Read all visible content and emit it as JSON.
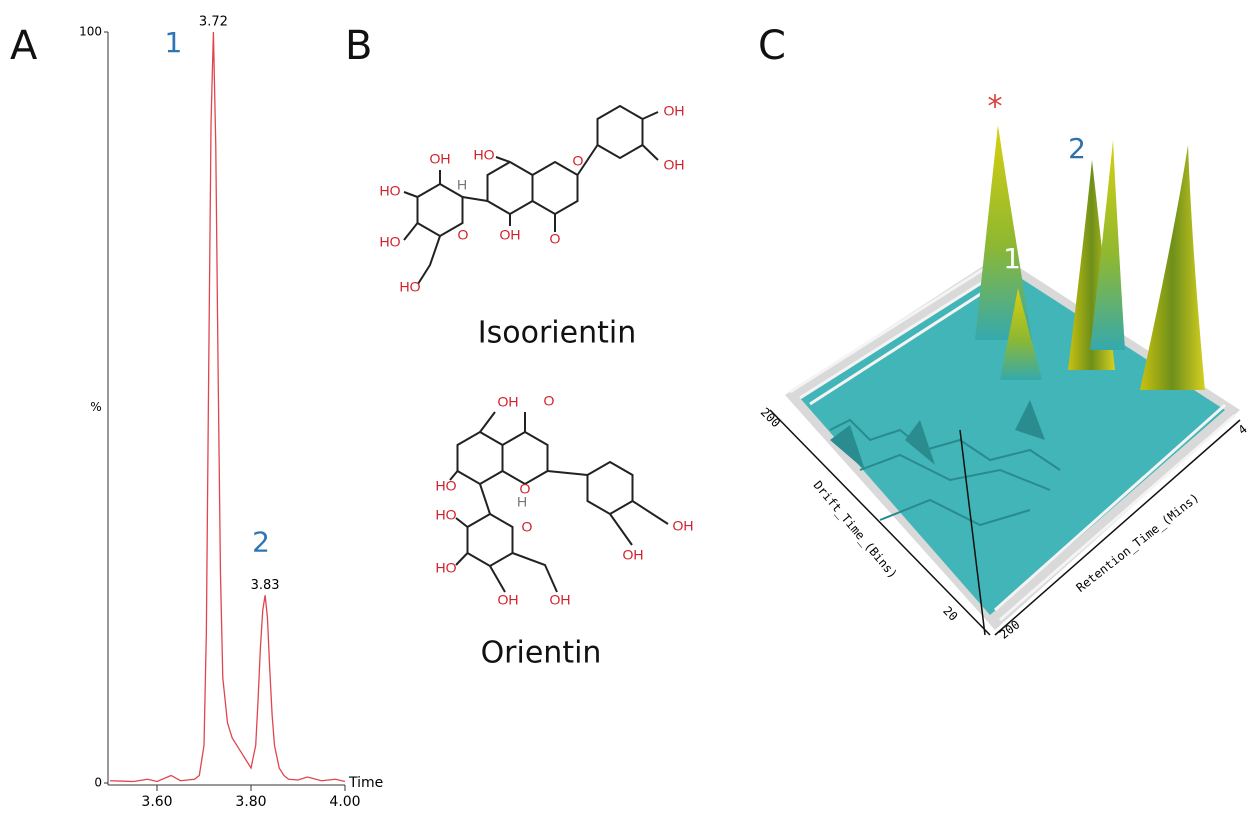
{
  "chart_data": {
    "type": "line",
    "panel_label": "A",
    "xlabel": "Time",
    "ylabel": "%",
    "color": "#e0454f",
    "x": [
      3.5,
      3.55,
      3.58,
      3.6,
      3.63,
      3.65,
      3.68,
      3.69,
      3.7,
      3.705,
      3.71,
      3.715,
      3.72,
      3.725,
      3.73,
      3.735,
      3.74,
      3.75,
      3.76,
      3.77,
      3.78,
      3.79,
      3.8,
      3.81,
      3.815,
      3.82,
      3.825,
      3.83,
      3.835,
      3.84,
      3.845,
      3.85,
      3.86,
      3.87,
      3.88,
      3.9,
      3.92,
      3.95,
      3.98,
      4.0
    ],
    "values": [
      0.3,
      0.2,
      0.5,
      0.2,
      1,
      0.3,
      0.5,
      1,
      5,
      20,
      55,
      88,
      100,
      85,
      55,
      28,
      14,
      8,
      6,
      5,
      4,
      3,
      2,
      5,
      11,
      18,
      23,
      25,
      22,
      15,
      9,
      5,
      2,
      1,
      0.5,
      0.4,
      0.8,
      0.3,
      0.5,
      0.2
    ],
    "xlim": [
      3.5,
      4.0
    ],
    "ylim": [
      0,
      100
    ],
    "xticks": [
      {
        "value": 3.6,
        "label": "3.60"
      },
      {
        "value": 3.8,
        "label": "3.80"
      },
      {
        "value": 4.0,
        "label": "4.00"
      }
    ],
    "yticks": [
      0,
      100
    ],
    "peaks": [
      {
        "number": "1",
        "label": "3.72",
        "x": 3.72,
        "y": 100
      },
      {
        "number": "2",
        "label": "3.83",
        "x": 3.83,
        "y": 25
      }
    ]
  },
  "panel_b": {
    "label": "B",
    "structures": [
      {
        "name": "Isoorientin",
        "atoms": [
          "HO",
          "OH",
          "O",
          "O",
          "OH",
          "OH",
          "H",
          "O",
          "OH",
          "HO",
          "HO",
          "HO"
        ]
      },
      {
        "name": "Orientin",
        "atoms": [
          "OH",
          "O",
          "HO",
          "O",
          "OH",
          "OH",
          "H",
          "O",
          "HO",
          "HO",
          "OH",
          "OH"
        ]
      }
    ]
  },
  "panel_c": {
    "label": "C",
    "marker": "*",
    "peaks": [
      "1",
      "2"
    ],
    "drift_label": "Drift_Time_(Bins)",
    "retention_label": "Retention_Time_(Mins)",
    "drift_ticks": [
      "200",
      "20"
    ],
    "retention_ticks": [
      "4",
      "200"
    ]
  }
}
